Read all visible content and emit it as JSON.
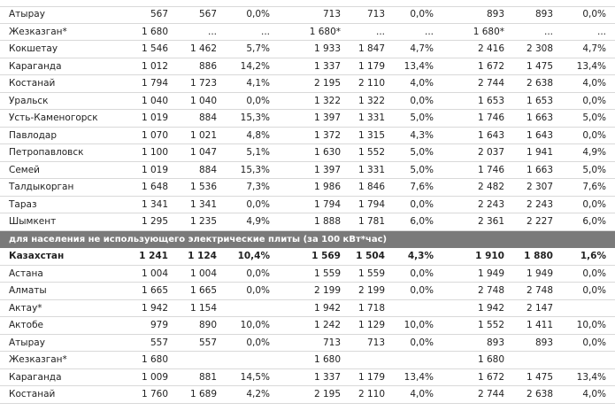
{
  "table": {
    "rows_top": [
      [
        "Атырау",
        "567",
        "567",
        "0,0%",
        "713",
        "713",
        "0,0%",
        "893",
        "893",
        "0,0%"
      ],
      [
        "Жезказган*",
        "1 680",
        "...",
        "...",
        "1 680*",
        "...",
        "...",
        "1 680*",
        "...",
        "..."
      ],
      [
        "Кокшетау",
        "1 546",
        "1 462",
        "5,7%",
        "1 933",
        "1 847",
        "4,7%",
        "2 416",
        "2 308",
        "4,7%"
      ],
      [
        "Караганда",
        "1 012",
        "886",
        "14,2%",
        "1 337",
        "1 179",
        "13,4%",
        "1 672",
        "1 475",
        "13,4%"
      ],
      [
        "Костанай",
        "1 794",
        "1 723",
        "4,1%",
        "2 195",
        "2 110",
        "4,0%",
        "2 744",
        "2 638",
        "4,0%"
      ],
      [
        "Уральск",
        "1 040",
        "1 040",
        "0,0%",
        "1 322",
        "1 322",
        "0,0%",
        "1 653",
        "1 653",
        "0,0%"
      ],
      [
        "Усть-Каменогорск",
        "1 019",
        "884",
        "15,3%",
        "1 397",
        "1 331",
        "5,0%",
        "1 746",
        "1 663",
        "5,0%"
      ],
      [
        "Павлодар",
        "1 070",
        "1 021",
        "4,8%",
        "1 372",
        "1 315",
        "4,3%",
        "1 643",
        "1 643",
        "0,0%"
      ],
      [
        "Петропавловск",
        "1 100",
        "1 047",
        "5,1%",
        "1 630",
        "1 552",
        "5,0%",
        "2 037",
        "1 941",
        "4,9%"
      ],
      [
        "Семей",
        "1 019",
        "884",
        "15,3%",
        "1 397",
        "1 331",
        "5,0%",
        "1 746",
        "1 663",
        "5,0%"
      ],
      [
        "Талдыкорган",
        "1 648",
        "1 536",
        "7,3%",
        "1 986",
        "1 846",
        "7,6%",
        "2 482",
        "2 307",
        "7,6%"
      ],
      [
        "Тараз",
        "1 341",
        "1 341",
        "0,0%",
        "1 794",
        "1 794",
        "0,0%",
        "2 243",
        "2 243",
        "0,0%"
      ],
      [
        "Шымкент",
        "1 295",
        "1 235",
        "4,9%",
        "1 888",
        "1 781",
        "6,0%",
        "2 361",
        "2 227",
        "6,0%"
      ]
    ],
    "section_header": "для населения не использующего электрические плиты (за 100 кВт*час)",
    "rows_bottom": [
      [
        "Казахстан",
        "1 241",
        "1 124",
        "10,4%",
        "1 569",
        "1 504",
        "4,3%",
        "1 910",
        "1 880",
        "1,6%"
      ],
      [
        "Астана",
        "1 004",
        "1 004",
        "0,0%",
        "1 559",
        "1 559",
        "0,0%",
        "1 949",
        "1 949",
        "0,0%"
      ],
      [
        "Алматы",
        "1 665",
        "1 665",
        "0,0%",
        "2 199",
        "2 199",
        "0,0%",
        "2 748",
        "2 748",
        "0,0%"
      ],
      [
        "Актау*",
        "1 942",
        "1 154",
        null,
        "1 942",
        "1 718",
        null,
        "1 942",
        "2 147",
        null
      ],
      [
        "Актобе",
        "979",
        "890",
        "10,0%",
        "1 242",
        "1 129",
        "10,0%",
        "1 552",
        "1 411",
        "10,0%"
      ],
      [
        "Атырау",
        "557",
        "557",
        "0,0%",
        "713",
        "713",
        "0,0%",
        "893",
        "893",
        "0,0%"
      ],
      [
        "Жезказган*",
        "1 680",
        null,
        null,
        "1 680",
        null,
        null,
        "1 680",
        null,
        null
      ],
      [
        "Караганда",
        "1 009",
        "881",
        "14,5%",
        "1 337",
        "1 179",
        "13,4%",
        "1 672",
        "1 475",
        "13,4%"
      ],
      [
        "Костанай",
        "1 760",
        "1 689",
        "4,2%",
        "2 195",
        "2 110",
        "4,0%",
        "2 744",
        "2 638",
        "4,0%"
      ]
    ]
  }
}
